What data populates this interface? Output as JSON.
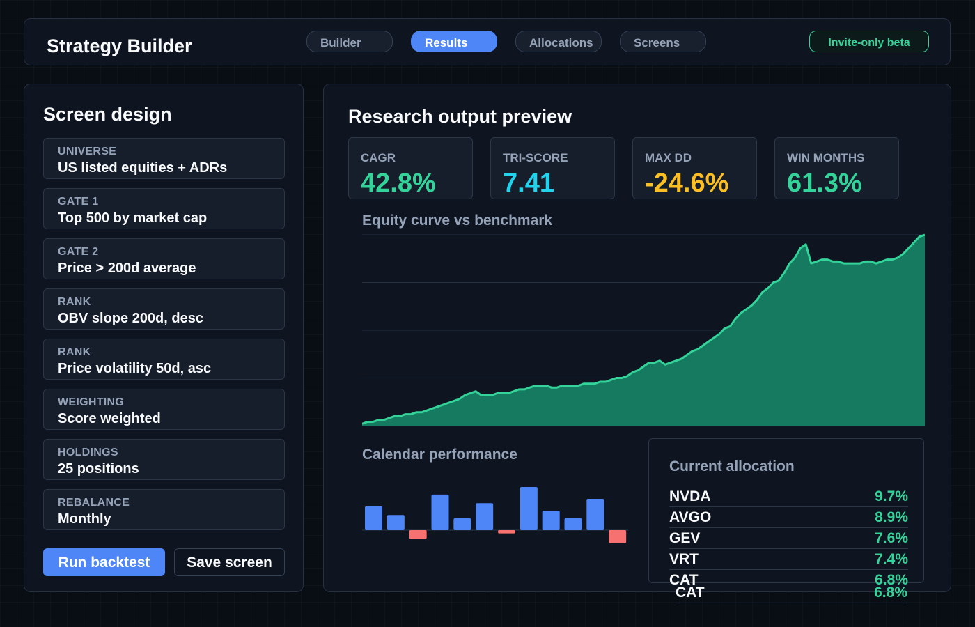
{
  "app": {
    "title": "Strategy Builder",
    "beta_label": "Invite-only beta"
  },
  "tabs": [
    {
      "label": "Builder",
      "active": false
    },
    {
      "label": "Results",
      "active": true
    },
    {
      "label": "Allocations",
      "active": false
    },
    {
      "label": "Screens",
      "active": false
    }
  ],
  "screen": {
    "title": "Screen design",
    "fields": [
      {
        "label": "UNIVERSE",
        "value": "US listed equities + ADRs"
      },
      {
        "label": "GATE 1",
        "value": "Top 500 by market cap"
      },
      {
        "label": "GATE 2",
        "value": "Price > 200d average"
      },
      {
        "label": "RANK",
        "value": "OBV slope 200d, desc"
      },
      {
        "label": "RANK",
        "value": "Price volatility 50d, asc"
      },
      {
        "label": "WEIGHTING",
        "value": "Score weighted"
      },
      {
        "label": "HOLDINGS",
        "value": "25 positions"
      },
      {
        "label": "REBALANCE",
        "value": "Monthly"
      }
    ],
    "run_label": "Run backtest",
    "save_label": "Save screen"
  },
  "results": {
    "title": "Research output preview",
    "kpis": [
      {
        "label": "CAGR",
        "value": "42.8%",
        "color": "#34d399"
      },
      {
        "label": "TRI-SCORE",
        "value": "7.41",
        "color": "#22d3ee"
      },
      {
        "label": "MAX DD",
        "value": "-24.6%",
        "color": "#fbbf24"
      },
      {
        "label": "WIN MONTHS",
        "value": "61.3%",
        "color": "#34d399"
      }
    ],
    "equity_title": "Equity curve vs benchmark",
    "calendar_title": "Calendar performance",
    "allocation_title": "Current allocation",
    "allocations": [
      {
        "ticker": "NVDA",
        "weight": "9.7%"
      },
      {
        "ticker": "AVGO",
        "weight": "8.9%"
      },
      {
        "ticker": "GEV",
        "weight": "7.6%"
      },
      {
        "ticker": "VRT",
        "weight": "7.4%"
      },
      {
        "ticker": "CAT",
        "weight": "6.8%"
      }
    ],
    "overflow_row": {
      "ticker": "CAT",
      "weight": "6.8%"
    }
  },
  "chart_data": [
    {
      "type": "area",
      "title": "Equity curve vs benchmark",
      "ylim": [
        0,
        100
      ],
      "grid": true,
      "color": "#34d399",
      "values": [
        1,
        2,
        2,
        3,
        3,
        4,
        5,
        5,
        6,
        6,
        7,
        7,
        8,
        9,
        10,
        11,
        12,
        13,
        14,
        16,
        17,
        18,
        16,
        16,
        16,
        17,
        17,
        17,
        18,
        19,
        19,
        20,
        21,
        21,
        21,
        20,
        20,
        21,
        21,
        21,
        21,
        22,
        22,
        22,
        23,
        23,
        24,
        25,
        25,
        26,
        28,
        29,
        31,
        33,
        33,
        34,
        32,
        33,
        34,
        35,
        37,
        39,
        40,
        42,
        44,
        46,
        48,
        51,
        52,
        56,
        59,
        61,
        63,
        66,
        70,
        72,
        75,
        76,
        80,
        85,
        88,
        93,
        95,
        85,
        86,
        87,
        87,
        86,
        86,
        85,
        85,
        85,
        85,
        86,
        86,
        85,
        86,
        87,
        87,
        88,
        90,
        93,
        96,
        99,
        100
      ]
    },
    {
      "type": "bar",
      "title": "Calendar performance",
      "values": [
        22,
        14,
        -8,
        33,
        11,
        25,
        -3,
        40,
        18,
        11,
        29,
        -12
      ],
      "colors": {
        "positive": "#4f86f7",
        "negative": "#f87171"
      }
    }
  ]
}
